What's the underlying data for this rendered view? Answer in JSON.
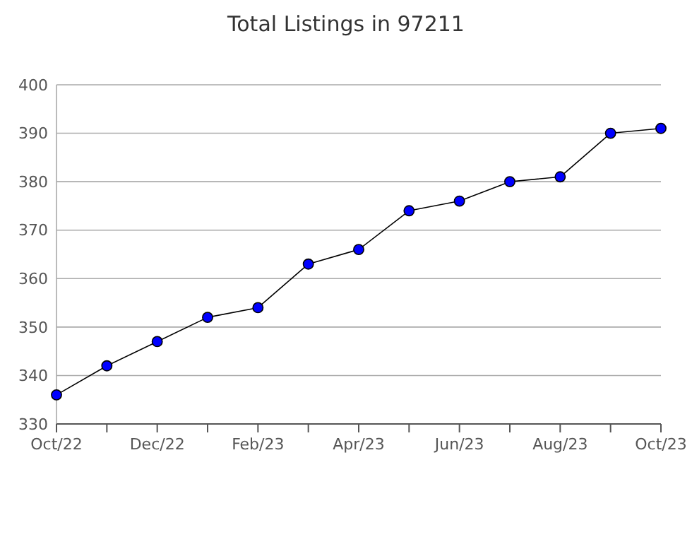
{
  "chart_data": {
    "type": "line",
    "title": "Total Listings in 97211",
    "categories": [
      "Oct/22",
      null,
      "Dec/22",
      null,
      "Feb/23",
      null,
      "Apr/23",
      null,
      "Jun/23",
      null,
      "Aug/23",
      null,
      "Oct/23"
    ],
    "series": [
      {
        "color": "#0000ff",
        "values": [
          336,
          342,
          347,
          352,
          354,
          363,
          366,
          374,
          376,
          380,
          381,
          390,
          391
        ]
      }
    ],
    "ylim": [
      330,
      400
    ],
    "yticks": [
      330,
      340,
      350,
      360,
      370,
      380,
      390,
      400
    ],
    "grid": "y",
    "marker": "circle",
    "line_style": "solid"
  }
}
